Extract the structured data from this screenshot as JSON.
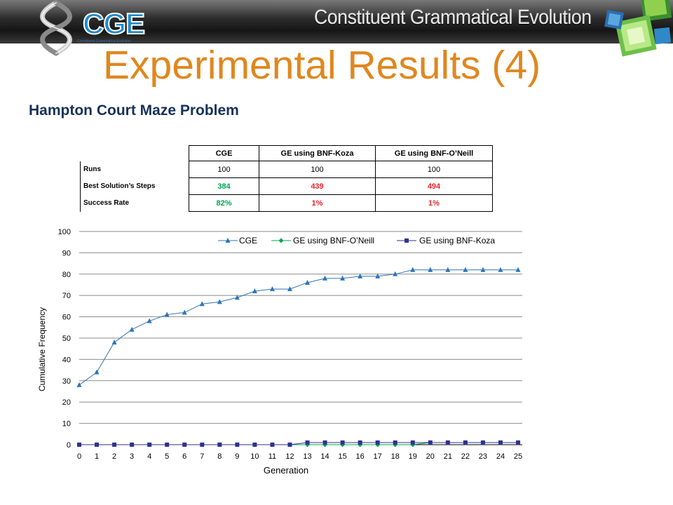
{
  "banner": {
    "title": "Constituent Grammatical Evolution"
  },
  "logo": {
    "text": "CGE",
    "subtitle": "Constituent Grammatical Evolution"
  },
  "slide": {
    "title": "Experimental  Results (4)",
    "subtitle": "Hampton Court Maze Problem"
  },
  "table": {
    "headers": [
      "CGE",
      "GE using BNF-Koza",
      "GE using BNF-O’Neill"
    ],
    "rows": [
      {
        "label": "Runs",
        "values": [
          "100",
          "100",
          "100"
        ]
      },
      {
        "label": "Best Solution’s Steps",
        "values": [
          "384",
          "439",
          "494"
        ]
      },
      {
        "label": "Success Rate",
        "values": [
          "82%",
          "1%",
          "1%"
        ]
      }
    ]
  },
  "colors": {
    "cge": "#2e75b6",
    "oneill": "#00a651",
    "koza": "#2e3192",
    "title": "#e0871e",
    "subtitle": "#17315a",
    "good": "#00a651",
    "bad": "#e8242c"
  },
  "chart_data": {
    "type": "line",
    "xlabel": "Generation",
    "ylabel": "Cumulative Frequency",
    "ylim": [
      0,
      100
    ],
    "yticks": [
      0,
      10,
      20,
      30,
      40,
      50,
      60,
      70,
      80,
      90,
      100
    ],
    "x": [
      0,
      1,
      2,
      3,
      4,
      5,
      6,
      7,
      8,
      9,
      10,
      11,
      12,
      13,
      14,
      15,
      16,
      17,
      18,
      19,
      20,
      21,
      22,
      23,
      24,
      25
    ],
    "grid": true,
    "legend": "top",
    "series": [
      {
        "name": "CGE",
        "marker": "triangle",
        "values": [
          28,
          34,
          48,
          54,
          58,
          61,
          62,
          66,
          67,
          69,
          72,
          73,
          73,
          76,
          78,
          78,
          79,
          79,
          80,
          82,
          82,
          82,
          82,
          82,
          82,
          82
        ]
      },
      {
        "name": "GE using BNF-O’Neill",
        "marker": "diamond",
        "values": [
          0,
          0,
          0,
          0,
          0,
          0,
          0,
          0,
          0,
          0,
          0,
          0,
          0,
          0,
          0,
          0,
          0,
          0,
          0,
          0,
          1,
          1,
          1,
          1,
          1,
          1
        ]
      },
      {
        "name": "GE using BNF-Koza",
        "marker": "square",
        "values": [
          0,
          0,
          0,
          0,
          0,
          0,
          0,
          0,
          0,
          0,
          0,
          0,
          0,
          1,
          1,
          1,
          1,
          1,
          1,
          1,
          1,
          1,
          1,
          1,
          1,
          1
        ]
      }
    ]
  }
}
